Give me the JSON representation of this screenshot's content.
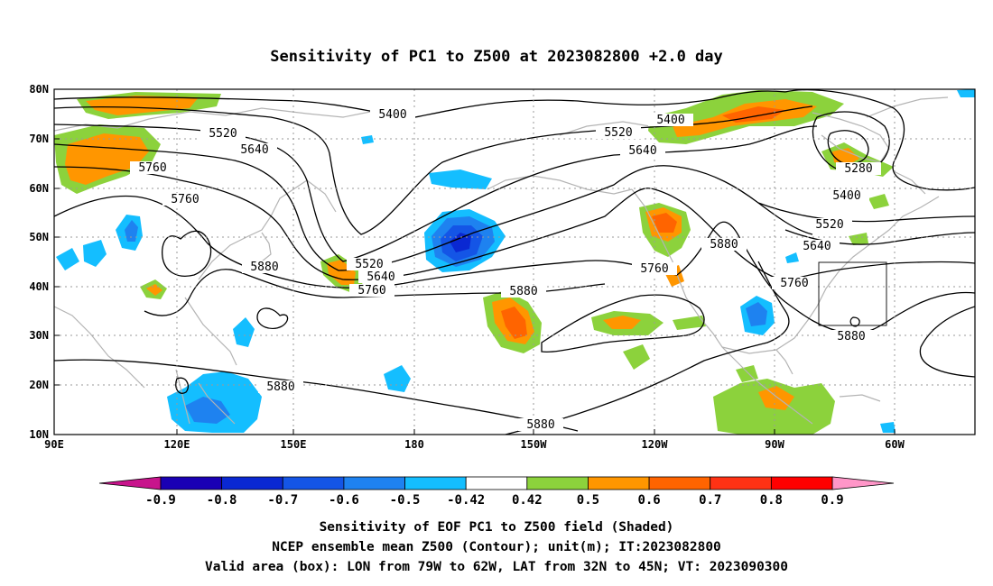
{
  "title": "Sensitivity of PC1 to Z500 at 2023082800 +2.0 day",
  "map": {
    "lat_labels": [
      "80N",
      "70N",
      "60N",
      "50N",
      "40N",
      "30N",
      "20N",
      "10N"
    ],
    "lon_labels": [
      "90E",
      "120E",
      "150E",
      "180",
      "150W",
      "120W",
      "90W",
      "60W"
    ],
    "contour_labels": [
      {
        "text": "5400",
        "id": "c1"
      },
      {
        "text": "5520",
        "id": "c2"
      },
      {
        "text": "5640",
        "id": "c3"
      },
      {
        "text": "5760",
        "id": "c4"
      },
      {
        "text": "5760",
        "id": "c5"
      },
      {
        "text": "5880",
        "id": "c6"
      },
      {
        "text": "5880",
        "id": "c7"
      },
      {
        "text": "5520",
        "id": "c8"
      },
      {
        "text": "5640",
        "id": "c9"
      },
      {
        "text": "5760",
        "id": "c10"
      },
      {
        "text": "5880",
        "id": "c11"
      },
      {
        "text": "5880",
        "id": "c12"
      },
      {
        "text": "5400",
        "id": "c13"
      },
      {
        "text": "5520",
        "id": "c14"
      },
      {
        "text": "5640",
        "id": "c15"
      },
      {
        "text": "5760",
        "id": "c16"
      },
      {
        "text": "5880",
        "id": "c17"
      },
      {
        "text": "5280",
        "id": "c18"
      },
      {
        "text": "5400",
        "id": "c19"
      },
      {
        "text": "5520",
        "id": "c20"
      },
      {
        "text": "5640",
        "id": "c21"
      },
      {
        "text": "5760",
        "id": "c22"
      },
      {
        "text": "5880",
        "id": "c23"
      }
    ],
    "valid_box": {
      "lon": [
        "79W",
        "62W"
      ],
      "lat": [
        "32N",
        "45N"
      ]
    }
  },
  "colorbar": {
    "labels": [
      "-0.9",
      "-0.8",
      "-0.7",
      "-0.6",
      "-0.5",
      "-0.42",
      "0.42",
      "0.5",
      "0.6",
      "0.7",
      "0.8",
      "0.9"
    ],
    "colors": [
      "#1a00b4",
      "#0a28d2",
      "#1455e6",
      "#1e82f0",
      "#14beff",
      "#ffffff",
      "#8cd23c",
      "#ff9600",
      "#ff6400",
      "#ff3214",
      "#ff0000"
    ],
    "low_end_color": "#c8148c",
    "high_end_color": "#ff96c8"
  },
  "caption": {
    "line1": "Sensitivity of EOF PC1 to Z500 field (Shaded)",
    "line2": "NCEP ensemble mean Z500 (Contour); unit(m); IT:2023082800",
    "line3": "Valid area (box): LON from 79W to 62W, LAT from 32N to 45N; VT: 2023090300"
  }
}
